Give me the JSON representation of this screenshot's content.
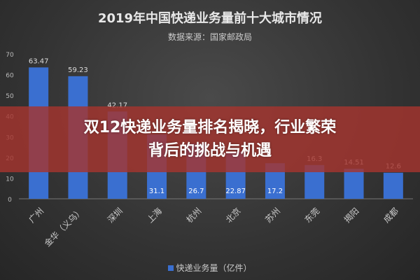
{
  "chart_data": {
    "type": "bar",
    "title": "2019年中国快递业务量前十大城市情况",
    "subtitle": "数据来源：国家邮政局",
    "categories": [
      "广州",
      "金华（义乌）",
      "深圳",
      "上海",
      "杭州",
      "北京",
      "苏州",
      "东莞",
      "揭阳",
      "成都"
    ],
    "series": [
      {
        "name": "快递业务量（亿件）",
        "values": [
          63.47,
          59.23,
          42.17,
          31.1,
          26.7,
          22.87,
          17.2,
          16.3,
          14.51,
          12.6
        ]
      }
    ],
    "ylim": [
      0,
      70
    ],
    "yticks": [
      0,
      10,
      20,
      30,
      40,
      50,
      60,
      70
    ],
    "legend": "bottom",
    "grid": false,
    "bar_color": "#3a6fd0"
  },
  "banner": {
    "line1": "双12快递业务量排名揭晓，行业繁荣",
    "line2": "背后的挑战与机遇",
    "color": "#a5342e"
  }
}
